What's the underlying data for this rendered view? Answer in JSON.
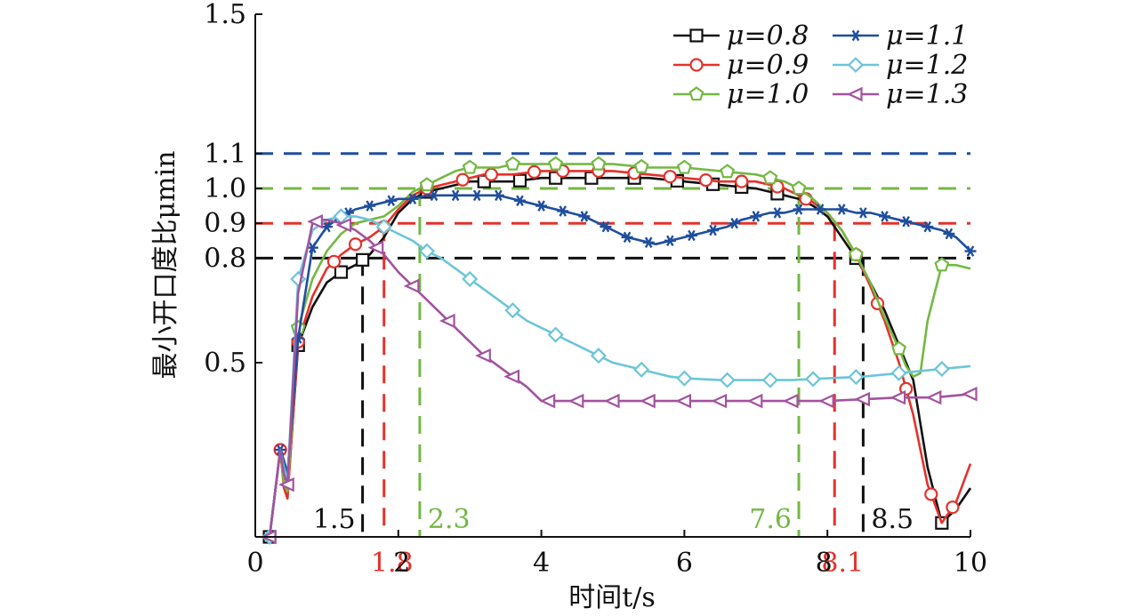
{
  "chart_data": {
    "type": "line",
    "xlabel": "时间t/s",
    "ylabel": "最小开口度比μmin",
    "xlim": [
      0,
      10
    ],
    "ylim": [
      0,
      1.5
    ],
    "x_ticks": [
      "0",
      "2",
      "4",
      "6",
      "8",
      "10"
    ],
    "y_ticks": [
      "0.5",
      "0.8",
      "0.9",
      "1.0",
      "1.1",
      "1.5"
    ],
    "grid": false,
    "legend_position": "top-right",
    "series": [
      {
        "name": "μ=0.8",
        "color": "#111111",
        "marker": "square",
        "x": [
          0.2,
          0.35,
          0.4,
          0.45,
          0.6,
          0.8,
          1.0,
          1.2,
          1.4,
          1.6,
          1.8,
          2.0,
          2.2,
          2.4,
          2.6,
          2.8,
          3.0,
          3.2,
          3.4,
          3.6,
          4.0,
          4.5,
          5.0,
          5.5,
          6.0,
          6.5,
          7.0,
          7.2,
          7.4,
          7.6,
          7.8,
          8.0,
          8.2,
          8.4,
          8.6,
          8.8,
          9.0,
          9.2,
          9.4,
          9.6,
          9.8,
          10.0
        ],
        "y": [
          0.0,
          0.25,
          0.15,
          0.12,
          0.55,
          0.66,
          0.73,
          0.76,
          0.78,
          0.81,
          0.86,
          0.93,
          0.97,
          0.99,
          1.0,
          1.01,
          1.02,
          1.02,
          1.02,
          1.02,
          1.03,
          1.03,
          1.03,
          1.03,
          1.02,
          1.01,
          1.0,
          0.99,
          0.98,
          0.97,
          0.95,
          0.92,
          0.86,
          0.8,
          0.73,
          0.65,
          0.55,
          0.45,
          0.2,
          0.04,
          0.08,
          0.14
        ],
        "marker_x": [
          0.2,
          0.6,
          1.2,
          1.5,
          2.4,
          3.2,
          3.7,
          4.2,
          4.7,
          5.3,
          5.9,
          6.4,
          6.8,
          7.3,
          8.4,
          9.6
        ]
      },
      {
        "name": "μ=0.9",
        "color": "#e4322b",
        "marker": "circle",
        "x": [
          0.2,
          0.35,
          0.4,
          0.45,
          0.6,
          0.8,
          1.0,
          1.2,
          1.4,
          1.6,
          1.8,
          2.0,
          2.2,
          2.4,
          2.6,
          2.8,
          3.0,
          3.2,
          3.4,
          3.6,
          4.0,
          4.5,
          5.0,
          5.5,
          6.0,
          6.5,
          7.0,
          7.2,
          7.4,
          7.6,
          7.8,
          8.0,
          8.2,
          8.4,
          8.6,
          8.8,
          9.0,
          9.2,
          9.4,
          9.6,
          9.8,
          10.0
        ],
        "y": [
          0.0,
          0.25,
          0.14,
          0.11,
          0.56,
          0.69,
          0.77,
          0.81,
          0.84,
          0.86,
          0.89,
          0.94,
          0.98,
          1.0,
          1.01,
          1.02,
          1.03,
          1.04,
          1.04,
          1.04,
          1.05,
          1.05,
          1.05,
          1.04,
          1.03,
          1.02,
          1.02,
          1.01,
          1.0,
          0.98,
          0.96,
          0.93,
          0.88,
          0.81,
          0.72,
          0.62,
          0.5,
          0.35,
          0.15,
          0.04,
          0.1,
          0.21
        ],
        "marker_x": [
          0.35,
          0.6,
          1.1,
          1.4,
          1.8,
          2.4,
          2.9,
          3.3,
          3.9,
          4.3,
          4.8,
          5.3,
          5.8,
          6.3,
          6.8,
          7.3,
          7.7,
          8.4,
          8.7,
          9.1,
          9.45,
          9.75
        ]
      },
      {
        "name": "μ=1.0",
        "color": "#74b843",
        "marker": "pentagon",
        "x": [
          0.2,
          0.35,
          0.4,
          0.45,
          0.6,
          0.8,
          1.0,
          1.2,
          1.4,
          1.6,
          1.8,
          2.0,
          2.2,
          2.4,
          2.6,
          2.8,
          3.0,
          3.2,
          3.4,
          3.6,
          4.0,
          4.5,
          5.0,
          5.5,
          6.0,
          6.5,
          7.0,
          7.2,
          7.4,
          7.6,
          7.8,
          8.0,
          8.2,
          8.4,
          8.6,
          8.8,
          9.0,
          9.1,
          9.2,
          9.3,
          9.4,
          9.6,
          9.8,
          10.0
        ],
        "y": [
          0.0,
          0.25,
          0.15,
          0.13,
          0.6,
          0.74,
          0.82,
          0.87,
          0.9,
          0.91,
          0.92,
          0.95,
          0.99,
          1.01,
          1.03,
          1.05,
          1.06,
          1.06,
          1.06,
          1.07,
          1.07,
          1.07,
          1.07,
          1.06,
          1.06,
          1.05,
          1.04,
          1.03,
          1.02,
          1.0,
          0.97,
          0.93,
          0.88,
          0.81,
          0.73,
          0.63,
          0.54,
          0.49,
          0.46,
          0.47,
          0.62,
          0.78,
          0.78,
          0.77
        ],
        "marker_x": [
          0.6,
          2.4,
          3.0,
          3.6,
          4.2,
          4.8,
          5.4,
          6.0,
          6.6,
          7.2,
          7.6,
          8.4,
          9.0,
          9.6
        ]
      },
      {
        "name": "μ=1.1",
        "color": "#1f4e9e",
        "marker": "asterisk",
        "x": [
          0.2,
          0.35,
          0.4,
          0.45,
          0.6,
          0.8,
          1.0,
          1.2,
          1.4,
          1.6,
          1.8,
          2.0,
          2.2,
          2.4,
          2.6,
          2.8,
          3.0,
          3.2,
          3.4,
          3.6,
          3.8,
          4.0,
          4.2,
          4.4,
          4.6,
          4.8,
          5.0,
          5.2,
          5.4,
          5.6,
          5.8,
          6.0,
          6.2,
          6.4,
          6.6,
          6.8,
          7.0,
          7.2,
          7.4,
          7.6,
          7.8,
          8.0,
          8.2,
          8.4,
          8.6,
          8.8,
          9.0,
          9.2,
          9.4,
          9.6,
          9.8,
          10.0
        ],
        "y": [
          0.0,
          0.25,
          0.22,
          0.18,
          0.57,
          0.83,
          0.89,
          0.92,
          0.94,
          0.95,
          0.96,
          0.97,
          0.97,
          0.98,
          0.98,
          0.98,
          0.98,
          0.98,
          0.98,
          0.97,
          0.96,
          0.95,
          0.94,
          0.93,
          0.92,
          0.9,
          0.88,
          0.86,
          0.85,
          0.84,
          0.85,
          0.86,
          0.87,
          0.88,
          0.89,
          0.91,
          0.92,
          0.93,
          0.93,
          0.94,
          0.94,
          0.94,
          0.94,
          0.93,
          0.93,
          0.92,
          0.91,
          0.9,
          0.89,
          0.88,
          0.86,
          0.82
        ],
        "marker_x": [
          0.35,
          0.6,
          0.8,
          1.0,
          1.3,
          1.6,
          1.9,
          2.2,
          2.5,
          2.8,
          3.1,
          3.4,
          3.7,
          4.0,
          4.3,
          4.6,
          4.9,
          5.2,
          5.5,
          5.8,
          6.1,
          6.4,
          6.7,
          7.0,
          7.3,
          7.6,
          7.9,
          8.2,
          8.5,
          8.8,
          9.1,
          9.4,
          9.7,
          10.0
        ]
      },
      {
        "name": "μ=1.2",
        "color": "#6cc5d8",
        "marker": "diamond",
        "x": [
          0.2,
          0.35,
          0.4,
          0.45,
          0.6,
          0.8,
          1.0,
          1.2,
          1.4,
          1.6,
          1.8,
          2.0,
          2.2,
          2.4,
          2.6,
          2.8,
          3.0,
          3.2,
          3.4,
          3.6,
          3.8,
          4.0,
          4.2,
          4.4,
          4.6,
          4.8,
          5.0,
          5.2,
          5.4,
          5.6,
          5.8,
          6.0,
          6.5,
          7.0,
          7.5,
          8.0,
          8.5,
          9.0,
          9.5,
          10.0
        ],
        "y": [
          0.0,
          0.25,
          0.2,
          0.16,
          0.74,
          0.88,
          0.91,
          0.92,
          0.92,
          0.91,
          0.89,
          0.87,
          0.85,
          0.82,
          0.8,
          0.77,
          0.74,
          0.71,
          0.68,
          0.65,
          0.62,
          0.6,
          0.58,
          0.56,
          0.54,
          0.52,
          0.5,
          0.49,
          0.48,
          0.47,
          0.46,
          0.455,
          0.45,
          0.45,
          0.45,
          0.455,
          0.46,
          0.47,
          0.48,
          0.49
        ],
        "marker_x": [
          0.2,
          0.6,
          1.2,
          1.8,
          2.4,
          3.0,
          3.6,
          4.2,
          4.8,
          5.4,
          6.0,
          6.6,
          7.2,
          7.8,
          8.4,
          9.0,
          9.6
        ]
      },
      {
        "name": "μ=1.3",
        "color": "#a2539f",
        "marker": "triangle-left",
        "x": [
          0.2,
          0.35,
          0.4,
          0.45,
          0.6,
          0.8,
          0.9,
          1.0,
          1.2,
          1.4,
          1.6,
          1.8,
          2.0,
          2.2,
          2.4,
          2.6,
          2.8,
          3.0,
          3.2,
          3.4,
          3.6,
          3.8,
          4.0,
          4.5,
          5.0,
          5.5,
          6.0,
          6.5,
          7.0,
          7.5,
          8.0,
          8.5,
          9.0,
          9.5,
          10.0
        ],
        "y": [
          0.0,
          0.25,
          0.18,
          0.15,
          0.7,
          0.9,
          0.91,
          0.91,
          0.9,
          0.88,
          0.85,
          0.81,
          0.76,
          0.72,
          0.68,
          0.64,
          0.6,
          0.56,
          0.52,
          0.49,
          0.46,
          0.43,
          0.39,
          0.39,
          0.39,
          0.39,
          0.39,
          0.39,
          0.39,
          0.39,
          0.39,
          0.395,
          0.4,
          0.4,
          0.41
        ],
        "marker_x": [
          0.2,
          0.45,
          0.85,
          1.25,
          1.7,
          2.2,
          2.7,
          3.2,
          3.6,
          4.1,
          4.5,
          5.0,
          5.5,
          6.0,
          6.5,
          7.0,
          7.5,
          8.0,
          8.5,
          9.0,
          9.5,
          10.0
        ]
      }
    ],
    "reference_lines": [
      {
        "y": 0.8,
        "color": "#111111"
      },
      {
        "y": 0.9,
        "color": "#e4322b"
      },
      {
        "y": 1.0,
        "color": "#74b843"
      },
      {
        "y": 1.1,
        "color": "#1f4e9e"
      }
    ],
    "annotations": [
      {
        "x": 1.5,
        "y_top": 0.8,
        "label": "1.5",
        "color": "#111111"
      },
      {
        "x": 1.8,
        "y_top": 0.9,
        "label": "1.8",
        "color": "#e4322b"
      },
      {
        "x": 2.3,
        "y_top": 1.0,
        "label": "2.3",
        "color": "#74b843"
      },
      {
        "x": 7.6,
        "y_top": 1.0,
        "label": "7.6",
        "color": "#74b843"
      },
      {
        "x": 8.1,
        "y_top": 0.9,
        "label": "8.1",
        "color": "#e4322b"
      },
      {
        "x": 8.5,
        "y_top": 0.8,
        "label": "8.5",
        "color": "#111111"
      }
    ]
  }
}
